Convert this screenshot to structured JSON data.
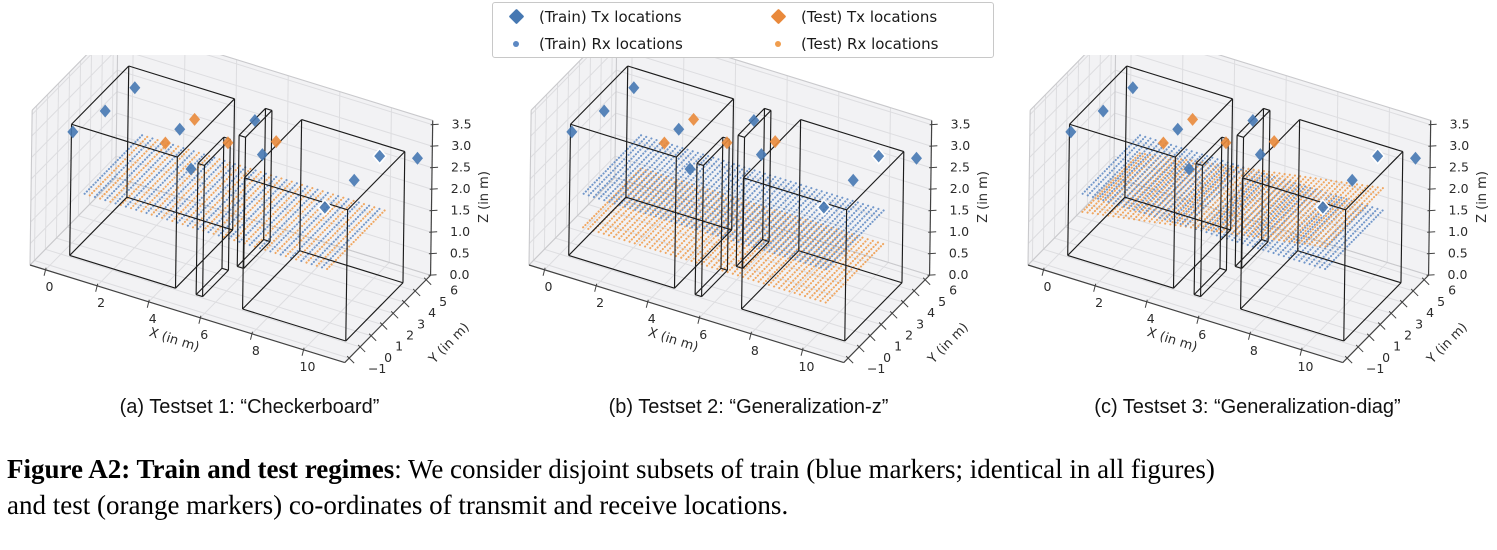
{
  "legend": {
    "items": [
      {
        "label": "(Train) Tx locations",
        "marker": "diamond",
        "color": "#4678b2"
      },
      {
        "label": "(Train) Rx locations",
        "marker": "dot",
        "color": "#5c88c3"
      },
      {
        "label": "(Test) Tx locations",
        "marker": "diamond",
        "color": "#e9893b"
      },
      {
        "label": "(Test) Rx locations",
        "marker": "dot",
        "color": "#f09d4e"
      }
    ]
  },
  "colors": {
    "train_diamond": "#4678b2",
    "train_dot": "#5c88c3",
    "test_diamond": "#e9893b",
    "test_dot": "#f09a48",
    "room_line": "#1c1c1c",
    "pane": "#f2f2f4",
    "grid": "#dddde0",
    "pane_edge": "#c9c9cc",
    "spine": "#424242",
    "tick_text": "#2b2b2b"
  },
  "chart_data": {
    "type": "scatter",
    "projection": "3d",
    "axes": {
      "xlabel": "X (in m)",
      "ylabel": "Y (in m)",
      "zlabel": "Z (in m)",
      "xticks": [
        0,
        2,
        4,
        6,
        8,
        10
      ],
      "yticks": [
        -1,
        0,
        1,
        2,
        3,
        4,
        5,
        6
      ],
      "zticks": [
        0.0,
        0.5,
        1.0,
        1.5,
        2.0,
        2.5,
        3.0,
        3.5
      ],
      "xlim": [
        -0.6,
        11.6
      ],
      "ylim": [
        -1.4,
        6.4
      ],
      "zlim": [
        0,
        3.6
      ],
      "grid": true
    },
    "rooms": [
      {
        "x": [
          0.3,
          4.4
        ],
        "y": [
          0.1,
          5.3
        ],
        "z": [
          0,
          3.05
        ]
      },
      {
        "x": [
          7.0,
          11.0
        ],
        "y": [
          0.1,
          5.3
        ],
        "z": [
          0,
          3.05
        ]
      },
      {
        "x": [
          5.2,
          5.45
        ],
        "y": [
          0.1,
          2.45
        ],
        "z": [
          0,
          3.05
        ]
      },
      {
        "x": [
          5.6,
          5.85
        ],
        "y": [
          2.9,
          5.3
        ],
        "z": [
          0,
          3.05
        ]
      }
    ],
    "tx_train": [
      [
        0.5,
        -0.25,
        3.0
      ],
      [
        0.85,
        1.87,
        3.0
      ],
      [
        1.3,
        3.5,
        3.2
      ],
      [
        3.6,
        2.2,
        3.0
      ],
      [
        4.6,
        0.9,
        2.6
      ],
      [
        5.7,
        4.1,
        3.1
      ],
      [
        6.3,
        3.4,
        2.6
      ],
      [
        9.9,
        3.3,
        2.7
      ],
      [
        10.2,
        4.9,
        2.9
      ],
      [
        9.2,
        2.3,
        2.2
      ],
      [
        11.2,
        6.0,
        2.75
      ]
    ],
    "tx_train_white_edge": [
      8,
      9
    ],
    "tx_test": [
      [
        4.0,
        2.6,
        3.2
      ],
      [
        5.3,
        2.6,
        2.9
      ],
      [
        6.7,
        3.7,
        2.9
      ],
      [
        3.45,
        1.25,
        2.9
      ]
    ],
    "rx_grid": {
      "x_start": 0.8,
      "x_end": 10.2,
      "x_step": 0.2,
      "y_start": 0.2,
      "y_end": 5.45
    },
    "subplots": [
      {
        "id": "a",
        "caption": "(a) Testset 1: “Checkerboard”",
        "planes": [
          {
            "set": "checkerboard",
            "z0": 1.5,
            "slope": 0
          }
        ]
      },
      {
        "id": "b",
        "caption": "(b) Testset 2: “Generalization-z”",
        "planes": [
          {
            "set": "test",
            "z0": 0.72,
            "slope": 0
          },
          {
            "set": "train",
            "z0": 1.5,
            "slope": 0
          }
        ]
      },
      {
        "id": "c",
        "caption": "(c) Testset 3: “Generalization-diag”",
        "planes": [
          {
            "set": "train",
            "z0": 1.5,
            "slope": 0
          },
          {
            "set": "test",
            "z0": 1.0,
            "slope": 0.1
          }
        ]
      }
    ]
  },
  "figure_caption": {
    "bold": "Figure A2: Train and test regimes",
    "line1_rest": ": We consider disjoint subsets of train (blue markers; identical in all figures)",
    "line2": "and test (orange markers) co-ordinates of transmit and receive locations."
  }
}
